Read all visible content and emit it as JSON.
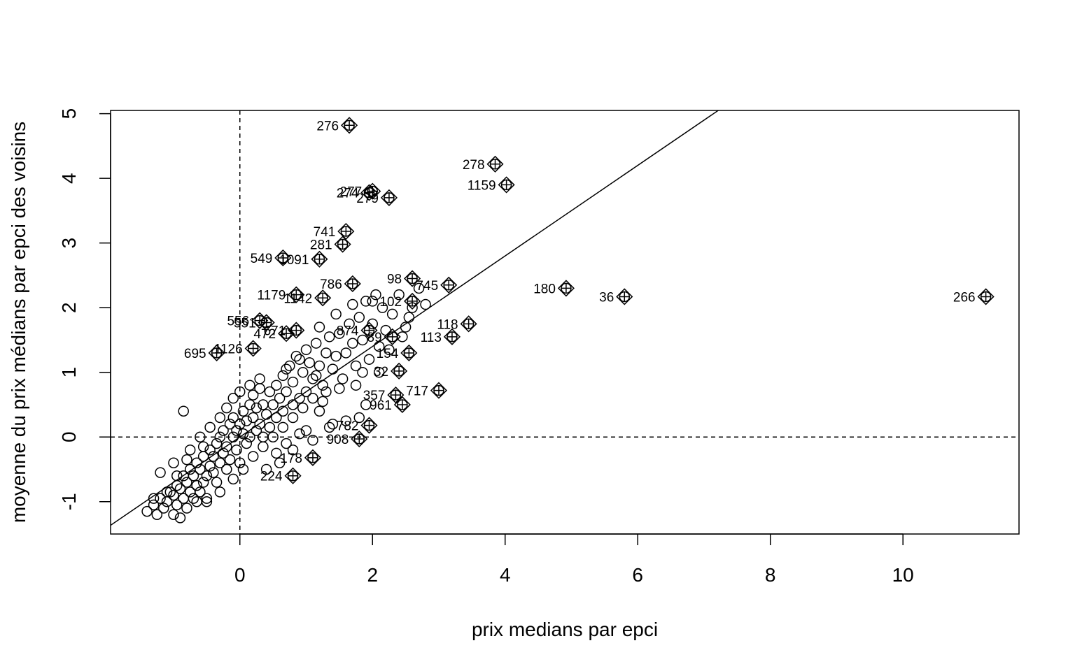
{
  "chart_data": {
    "type": "scatter",
    "title": "",
    "xlabel": "prix medians par epci",
    "ylabel": "moyenne du prix médians par epci des voisins",
    "xlim": [
      -1.95,
      11.75
    ],
    "ylim": [
      -1.5,
      5.05
    ],
    "xticks": [
      0,
      2,
      4,
      6,
      8,
      10
    ],
    "yticks": [
      -1,
      0,
      1,
      2,
      3,
      4,
      5
    ],
    "reference_lines": {
      "vertical_x": 0,
      "horizontal_y": 0,
      "diagonal": {
        "intercept": 0.0,
        "slope": 0.7
      }
    },
    "ordinary_points": [
      [
        -1.4,
        -1.15
      ],
      [
        -1.3,
        -1.05
      ],
      [
        -1.25,
        -1.2
      ],
      [
        -1.2,
        -0.95
      ],
      [
        -1.15,
        -1.1
      ],
      [
        -1.1,
        -1.0
      ],
      [
        -1.05,
        -0.85
      ],
      [
        -1.0,
        -1.2
      ],
      [
        -1.0,
        -0.9
      ],
      [
        -0.95,
        -1.05
      ],
      [
        -0.95,
        -0.75
      ],
      [
        -0.9,
        -1.25
      ],
      [
        -0.9,
        -0.8
      ],
      [
        -0.85,
        -0.95
      ],
      [
        -0.85,
        -0.6
      ],
      [
        -0.8,
        -1.1
      ],
      [
        -0.8,
        -0.7
      ],
      [
        -0.75,
        -0.85
      ],
      [
        -0.75,
        -0.5
      ],
      [
        -0.7,
        -0.95
      ],
      [
        -0.7,
        -0.6
      ],
      [
        -0.65,
        -0.75
      ],
      [
        -0.65,
        -0.4
      ],
      [
        -0.6,
        -0.85
      ],
      [
        -0.6,
        -0.5
      ],
      [
        -0.55,
        -0.7
      ],
      [
        -0.55,
        -0.3
      ],
      [
        -0.5,
        -0.6
      ],
      [
        -0.5,
        -0.95
      ],
      [
        -0.45,
        -0.45
      ],
      [
        -0.45,
        -0.2
      ],
      [
        -0.4,
        -0.55
      ],
      [
        -0.4,
        -0.3
      ],
      [
        -0.35,
        -0.1
      ],
      [
        -0.35,
        -0.7
      ],
      [
        -0.3,
        -0.4
      ],
      [
        -0.3,
        0.0
      ],
      [
        -0.25,
        -0.25
      ],
      [
        -0.25,
        0.1
      ],
      [
        -0.2,
        -0.5
      ],
      [
        -0.2,
        -0.15
      ],
      [
        -0.15,
        0.2
      ],
      [
        -0.15,
        -0.35
      ],
      [
        -0.1,
        0.0
      ],
      [
        -0.1,
        0.3
      ],
      [
        -0.05,
        -0.2
      ],
      [
        -0.05,
        0.1
      ],
      [
        0.0,
        0.2
      ],
      [
        0.0,
        -0.4
      ],
      [
        0.05,
        0.05
      ],
      [
        0.05,
        0.4
      ],
      [
        0.1,
        -0.1
      ],
      [
        0.1,
        0.25
      ],
      [
        0.15,
        0.5
      ],
      [
        0.15,
        0.0
      ],
      [
        0.2,
        0.3
      ],
      [
        0.2,
        0.65
      ],
      [
        0.25,
        0.1
      ],
      [
        0.25,
        0.45
      ],
      [
        0.3,
        0.2
      ],
      [
        0.3,
        0.75
      ],
      [
        0.35,
        0.5
      ],
      [
        0.35,
        0.0
      ],
      [
        0.4,
        0.35
      ],
      [
        0.45,
        0.7
      ],
      [
        0.45,
        0.15
      ],
      [
        0.5,
        0.5
      ],
      [
        0.55,
        0.8
      ],
      [
        0.55,
        0.3
      ],
      [
        0.6,
        0.6
      ],
      [
        0.65,
        0.95
      ],
      [
        0.65,
        0.4
      ],
      [
        0.7,
        0.7
      ],
      [
        0.75,
        1.1
      ],
      [
        0.8,
        0.5
      ],
      [
        0.8,
        0.85
      ],
      [
        0.85,
        1.25
      ],
      [
        0.9,
        0.6
      ],
      [
        0.95,
        1.0
      ],
      [
        1.0,
        1.35
      ],
      [
        1.0,
        0.7
      ],
      [
        1.05,
        1.15
      ],
      [
        1.1,
        0.9
      ],
      [
        1.15,
        1.45
      ],
      [
        1.2,
        1.1
      ],
      [
        1.25,
        0.8
      ],
      [
        1.3,
        1.3
      ],
      [
        1.35,
        1.55
      ],
      [
        1.4,
        1.05
      ],
      [
        1.45,
        1.25
      ],
      [
        1.5,
        1.6
      ],
      [
        1.55,
        0.9
      ],
      [
        1.6,
        1.3
      ],
      [
        1.65,
        1.75
      ],
      [
        1.7,
        1.45
      ],
      [
        1.75,
        1.1
      ],
      [
        1.8,
        1.85
      ],
      [
        1.85,
        1.5
      ],
      [
        1.9,
        2.1
      ],
      [
        1.95,
        1.2
      ],
      [
        2.0,
        1.75
      ],
      [
        2.05,
        2.2
      ],
      [
        2.1,
        1.4
      ],
      [
        2.15,
        2.0
      ],
      [
        2.2,
        1.65
      ],
      [
        2.3,
        1.9
      ],
      [
        2.4,
        2.2
      ],
      [
        2.5,
        1.7
      ],
      [
        2.6,
        2.0
      ],
      [
        2.7,
        2.3
      ],
      [
        -0.85,
        0.4
      ],
      [
        -1.2,
        -0.55
      ],
      [
        -1.0,
        -0.4
      ],
      [
        -0.75,
        -0.2
      ],
      [
        -0.6,
        0.0
      ],
      [
        -0.45,
        0.15
      ],
      [
        -0.3,
        0.3
      ],
      [
        -0.2,
        0.45
      ],
      [
        -0.1,
        0.6
      ],
      [
        0.0,
        0.7
      ],
      [
        0.15,
        0.8
      ],
      [
        0.3,
        0.9
      ],
      [
        -0.5,
        -1.0
      ],
      [
        -0.3,
        -0.85
      ],
      [
        -0.1,
        -0.65
      ],
      [
        0.05,
        -0.5
      ],
      [
        0.2,
        -0.3
      ],
      [
        0.35,
        -0.15
      ],
      [
        0.5,
        0.0
      ],
      [
        0.65,
        0.15
      ],
      [
        0.8,
        0.3
      ],
      [
        0.95,
        0.45
      ],
      [
        1.1,
        0.6
      ],
      [
        1.3,
        0.7
      ],
      [
        1.5,
        0.75
      ],
      [
        1.75,
        0.8
      ],
      [
        1.9,
        0.5
      ],
      [
        1.8,
        0.3
      ],
      [
        1.4,
        0.2
      ],
      [
        1.2,
        0.4
      ],
      [
        1.0,
        0.1
      ],
      [
        0.8,
        -0.2
      ],
      [
        0.6,
        -0.4
      ],
      [
        0.7,
        -0.1
      ],
      [
        0.9,
        0.05
      ],
      [
        1.1,
        -0.05
      ],
      [
        1.35,
        0.15
      ],
      [
        1.6,
        0.25
      ],
      [
        -0.65,
        -1.0
      ],
      [
        -1.1,
        -0.85
      ],
      [
        -1.3,
        -0.95
      ],
      [
        -0.95,
        -0.6
      ],
      [
        -0.8,
        -0.35
      ],
      [
        -0.55,
        -0.15
      ],
      [
        0.4,
        -0.5
      ],
      [
        0.55,
        -0.25
      ],
      [
        1.25,
        0.55
      ],
      [
        0.7,
        1.05
      ],
      [
        0.9,
        1.2
      ],
      [
        1.2,
        1.7
      ],
      [
        1.7,
        2.05
      ],
      [
        2.0,
        2.1
      ],
      [
        2.1,
        1.0
      ],
      [
        2.25,
        1.35
      ],
      [
        1.85,
        1.0
      ],
      [
        2.45,
        1.55
      ],
      [
        2.55,
        1.85
      ],
      [
        2.8,
        2.05
      ],
      [
        1.45,
        1.9
      ],
      [
        1.15,
        0.95
      ]
    ],
    "influential_points": [
      {
        "label": "276",
        "x": 1.65,
        "y": 4.82
      },
      {
        "label": "278",
        "x": 3.85,
        "y": 4.22
      },
      {
        "label": "1159",
        "x": 4.02,
        "y": 3.9
      },
      {
        "label": "180",
        "x": 4.92,
        "y": 2.3
      },
      {
        "label": "36",
        "x": 5.8,
        "y": 2.17
      },
      {
        "label": "266",
        "x": 11.25,
        "y": 2.17
      },
      {
        "label": "277",
        "x": 2.0,
        "y": 3.8
      },
      {
        "label": "274",
        "x": 1.95,
        "y": 3.78
      },
      {
        "label": "279",
        "x": 2.25,
        "y": 3.7
      },
      {
        "label": "741",
        "x": 1.6,
        "y": 3.18
      },
      {
        "label": "281",
        "x": 1.55,
        "y": 2.98
      },
      {
        "label": "549",
        "x": 0.65,
        "y": 2.77
      },
      {
        "label": "1091",
        "x": 1.2,
        "y": 2.75
      },
      {
        "label": "98",
        "x": 2.6,
        "y": 2.45
      },
      {
        "label": "745",
        "x": 3.15,
        "y": 2.35
      },
      {
        "label": "1179",
        "x": 0.85,
        "y": 2.2
      },
      {
        "label": "1142",
        "x": 1.25,
        "y": 2.15
      },
      {
        "label": "786",
        "x": 1.7,
        "y": 2.37
      },
      {
        "label": "102",
        "x": 2.6,
        "y": 2.1
      },
      {
        "label": "118",
        "x": 3.45,
        "y": 1.75
      },
      {
        "label": "556",
        "x": 0.3,
        "y": 1.8
      },
      {
        "label": "551",
        "x": 0.4,
        "y": 1.77
      },
      {
        "label": "472",
        "x": 0.7,
        "y": 1.6
      },
      {
        "label": "671",
        "x": 0.85,
        "y": 1.65
      },
      {
        "label": "874",
        "x": 1.95,
        "y": 1.65
      },
      {
        "label": "89",
        "x": 2.3,
        "y": 1.55
      },
      {
        "label": "154",
        "x": 2.55,
        "y": 1.3
      },
      {
        "label": "113",
        "x": 3.2,
        "y": 1.55
      },
      {
        "label": "695",
        "x": -0.35,
        "y": 1.3
      },
      {
        "label": "1126",
        "x": 0.2,
        "y": 1.37
      },
      {
        "label": "717",
        "x": 3.0,
        "y": 0.72
      },
      {
        "label": "357",
        "x": 2.35,
        "y": 0.65
      },
      {
        "label": "961",
        "x": 2.45,
        "y": 0.5
      },
      {
        "label": "32",
        "x": 2.4,
        "y": 1.02
      },
      {
        "label": "782",
        "x": 1.95,
        "y": 0.18
      },
      {
        "label": "908",
        "x": 1.8,
        "y": -0.03
      },
      {
        "label": "178",
        "x": 1.1,
        "y": -0.32
      },
      {
        "label": "224",
        "x": 0.8,
        "y": -0.6
      }
    ]
  }
}
